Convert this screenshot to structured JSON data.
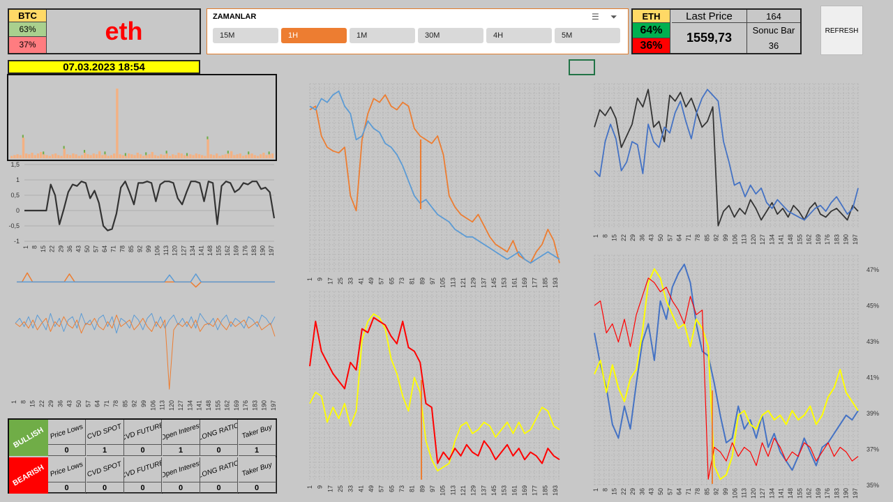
{
  "btc": {
    "label": "BTC",
    "bull_pct": "63%",
    "bear_pct": "37%"
  },
  "coin_name": "eth",
  "slicer": {
    "title": "ZAMANLAR",
    "buttons": [
      {
        "label": "15M",
        "selected": false
      },
      {
        "label": "1H",
        "selected": true
      },
      {
        "label": "1M",
        "selected": false
      },
      {
        "label": "30M",
        "selected": false
      },
      {
        "label": "4H",
        "selected": false
      },
      {
        "label": "5M",
        "selected": false
      }
    ],
    "icons": [
      "multi-select-icon",
      "clear-filter-icon"
    ]
  },
  "eth": {
    "label": "ETH",
    "bull_pct": "64%",
    "bear_pct": "36%",
    "last_price_label": "Last Price",
    "last_price": "1559,73",
    "bar_count": "164",
    "sonuc_bar_label": "Sonuc Bar",
    "sonuc_bar": "36"
  },
  "refresh_label": "REFRESH",
  "date": "07.03.2023 18:54",
  "signals": {
    "headers": [
      "Price Lows",
      "CVD SPOT",
      "CVD FUTURE",
      "Open Interest",
      "LONG RATIO",
      "Taker Buy"
    ],
    "bullish_label": "BULLISH",
    "bearish_label": "BEARISH",
    "bullish_values": [
      "0",
      "1",
      "0",
      "1",
      "0",
      "1"
    ],
    "bearish_values": [
      "0",
      "0",
      "0",
      "0",
      "0",
      "0"
    ]
  },
  "colors": {
    "orange": "#ed7d31",
    "blue": "#5b9bd5",
    "black": "#333333",
    "red": "#ff0000",
    "yellow": "#ffff00",
    "bull_green": "#00b050",
    "bear_red": "#ff0000"
  },
  "chart_data": [
    {
      "id": "volume",
      "type": "bar",
      "series": [
        {
          "values": [
            3,
            4,
            5,
            4,
            26,
            6,
            5,
            7,
            4,
            6,
            8,
            5,
            4,
            3,
            5,
            6,
            4,
            3,
            12,
            5,
            4,
            6,
            5,
            3,
            4,
            7,
            5,
            4,
            6,
            5,
            9,
            4,
            5,
            3,
            4,
            6,
            88,
            5,
            4,
            3,
            6,
            5,
            4,
            7,
            5,
            3,
            4,
            5,
            8,
            4,
            3,
            5,
            4,
            6,
            3,
            5,
            4,
            7,
            6,
            4,
            3,
            5,
            4,
            6,
            5,
            4,
            3,
            24,
            5,
            4,
            6,
            3,
            4,
            5,
            6,
            9,
            4,
            5,
            6,
            3,
            4,
            5,
            6,
            4,
            3,
            5,
            7,
            4,
            5,
            6
          ]
        }
      ]
    },
    {
      "id": "oscillator",
      "type": "line",
      "ylim": [
        -1,
        1.5
      ],
      "yticks": [
        "1,5",
        "1",
        "0,5",
        "0",
        "-0,5",
        "-1"
      ],
      "x_ticks": [
        "1",
        "8",
        "15",
        "22",
        "29",
        "36",
        "43",
        "50",
        "57",
        "64",
        "71",
        "78",
        "85",
        "92",
        "99",
        "106",
        "113",
        "120",
        "127",
        "134",
        "141",
        "148",
        "155",
        "162",
        "169",
        "176",
        "183",
        "190",
        "197"
      ],
      "series": [
        {
          "values": [
            0,
            0,
            0,
            0,
            0,
            0,
            0.85,
            0.5,
            -0.45,
            0.05,
            0.6,
            0.85,
            0.8,
            0.95,
            0.9,
            0.4,
            0.65,
            0.25,
            -0.5,
            -0.65,
            -0.6,
            -0.1,
            0.75,
            0.95,
            0.6,
            0.2,
            0.9,
            0.9,
            0.95,
            0.9,
            0.3,
            0.85,
            0.95,
            0.95,
            0.9,
            0.4,
            0.2,
            0.6,
            0.95,
            0.95,
            0.9,
            0.3,
            0.95,
            0.9,
            -0.45,
            0.8,
            0.95,
            0.9,
            0.6,
            0.7,
            0.9,
            0.85,
            0.95,
            0.95,
            0.7,
            0.75,
            0.6,
            -0.25
          ]
        }
      ]
    },
    {
      "id": "spikes",
      "type": "line",
      "series": [
        {
          "name": "orange",
          "values": [
            0,
            0,
            9,
            0,
            0,
            0,
            0,
            0,
            0,
            0,
            8,
            0,
            0,
            0,
            0,
            0,
            0,
            0,
            0,
            0,
            0,
            0,
            0,
            0,
            0,
            0,
            0,
            0,
            0,
            0,
            0,
            0,
            0,
            0,
            -5,
            0,
            0,
            0,
            0,
            0,
            0,
            0,
            0,
            0,
            0,
            0,
            0,
            0,
            0,
            0
          ]
        },
        {
          "name": "blue",
          "values": [
            0,
            0,
            0,
            0,
            0,
            0,
            0,
            0,
            0,
            0,
            0,
            0,
            0,
            0,
            0,
            0,
            0,
            0,
            0,
            0,
            0,
            0,
            0,
            0,
            0,
            0,
            0,
            0,
            0,
            7,
            0,
            0,
            0,
            0,
            8,
            0,
            0,
            0,
            0,
            0,
            0,
            0,
            0,
            0,
            0,
            0,
            0,
            0,
            0,
            0
          ]
        }
      ]
    },
    {
      "id": "cvd",
      "type": "line",
      "x_ticks": [
        "1",
        "8",
        "15",
        "22",
        "29",
        "36",
        "43",
        "50",
        "57",
        "64",
        "71",
        "78",
        "85",
        "92",
        "99",
        "106",
        "113",
        "120",
        "127",
        "134",
        "141",
        "148",
        "155",
        "162",
        "169",
        "176",
        "183",
        "190",
        "197"
      ],
      "series": [
        {
          "name": "blue",
          "values": [
            0,
            3,
            -2,
            4,
            -3,
            5,
            1,
            -4,
            6,
            -2,
            3,
            -5,
            2,
            4,
            -3,
            6,
            -1,
            2,
            -4,
            3,
            5,
            -2,
            4,
            -6,
            3,
            1,
            -3,
            5,
            2,
            -4,
            3,
            6,
            -2,
            4,
            -3,
            2,
            5,
            -1,
            3,
            -2,
            4,
            -3,
            6,
            2,
            -1,
            3,
            -4,
            2,
            5,
            -2,
            3,
            1,
            -3,
            4,
            2,
            -2,
            5,
            3,
            -1,
            4
          ]
        },
        {
          "name": "orange",
          "values": [
            0,
            -2,
            1,
            -3,
            2,
            -4,
            0,
            3,
            -5,
            1,
            -2,
            4,
            -1,
            -3,
            2,
            -6,
            0,
            -1,
            3,
            -2,
            -4,
            1,
            -3,
            5,
            -2,
            0,
            2,
            -4,
            -1,
            3,
            -2,
            -5,
            1,
            -3,
            2,
            -40,
            -4,
            0,
            -2,
            1,
            -3,
            2,
            -5,
            -1,
            0,
            -2,
            3,
            -1,
            -4,
            1,
            -2,
            0,
            2,
            -3,
            -1,
            1,
            -4,
            -2,
            0,
            -8
          ]
        }
      ]
    },
    {
      "id": "price-vs-blue",
      "type": "line",
      "x_ticks": [
        "1",
        "9",
        "17",
        "25",
        "33",
        "41",
        "49",
        "57",
        "65",
        "73",
        "81",
        "89",
        "97",
        "105",
        "113",
        "121",
        "129",
        "137",
        "145",
        "153",
        "161",
        "169",
        "177",
        "185",
        "193"
      ],
      "series": [
        {
          "name": "orange",
          "values": [
            86,
            88,
            72,
            66,
            64,
            63,
            66,
            40,
            32,
            70,
            84,
            92,
            90,
            94,
            88,
            86,
            90,
            88,
            76,
            72,
            70,
            68,
            72,
            62,
            40,
            34,
            30,
            28,
            26,
            30,
            24,
            18,
            14,
            12,
            10,
            16,
            8,
            6,
            4,
            10,
            14,
            22,
            16,
            4
          ]
        },
        {
          "name": "blue",
          "values": [
            88,
            86,
            92,
            90,
            94,
            96,
            88,
            84,
            70,
            72,
            80,
            76,
            74,
            68,
            66,
            62,
            56,
            48,
            40,
            36,
            38,
            34,
            30,
            28,
            26,
            22,
            20,
            18,
            18,
            16,
            14,
            12,
            10,
            8,
            6,
            8,
            10,
            6,
            4,
            6,
            8,
            10,
            8,
            6
          ]
        }
      ]
    },
    {
      "id": "black-vs-blue",
      "type": "line",
      "x_ticks": [
        "1",
        "8",
        "15",
        "22",
        "29",
        "36",
        "43",
        "50",
        "57",
        "64",
        "71",
        "78",
        "85",
        "92",
        "99",
        "106",
        "113",
        "120",
        "127",
        "134",
        "141",
        "148",
        "155",
        "162",
        "169",
        "176",
        "183",
        "190",
        "197"
      ],
      "series": [
        {
          "name": "black",
          "values": [
            70,
            82,
            78,
            84,
            76,
            56,
            64,
            72,
            90,
            84,
            96,
            70,
            74,
            60,
            92,
            88,
            94,
            84,
            90,
            80,
            70,
            74,
            84,
            2,
            12,
            16,
            8,
            14,
            10,
            20,
            14,
            6,
            12,
            18,
            10,
            14,
            8,
            16,
            12,
            6,
            14,
            18,
            10,
            8,
            12,
            14,
            10,
            6,
            16,
            12
          ]
        },
        {
          "name": "blue",
          "values": [
            40,
            36,
            60,
            72,
            62,
            40,
            46,
            60,
            58,
            38,
            72,
            60,
            56,
            70,
            66,
            80,
            88,
            74,
            62,
            80,
            90,
            96,
            92,
            88,
            60,
            46,
            30,
            32,
            22,
            30,
            24,
            28,
            18,
            14,
            20,
            16,
            12,
            10,
            8,
            6,
            10,
            14,
            16,
            12,
            18,
            22,
            16,
            10,
            14,
            28
          ]
        }
      ]
    },
    {
      "id": "red-vs-yellow",
      "type": "line",
      "x_ticks": [
        "1",
        "9",
        "17",
        "25",
        "33",
        "41",
        "49",
        "57",
        "65",
        "73",
        "81",
        "89",
        "97",
        "105",
        "113",
        "121",
        "129",
        "137",
        "145",
        "153",
        "161",
        "169",
        "177",
        "185",
        "193"
      ],
      "series": [
        {
          "name": "red",
          "values": [
            60,
            84,
            68,
            62,
            56,
            52,
            48,
            62,
            58,
            80,
            78,
            86,
            84,
            82,
            76,
            72,
            84,
            70,
            68,
            62,
            40,
            38,
            8,
            14,
            10,
            16,
            12,
            18,
            14,
            12,
            20,
            16,
            10,
            14,
            18,
            12,
            16,
            10,
            14,
            12,
            8,
            16,
            12,
            10
          ]
        },
        {
          "name": "yellow",
          "values": [
            40,
            46,
            44,
            30,
            38,
            32,
            40,
            28,
            36,
            74,
            84,
            88,
            86,
            80,
            64,
            56,
            44,
            36,
            54,
            46,
            20,
            10,
            4,
            6,
            8,
            20,
            28,
            30,
            24,
            26,
            30,
            28,
            22,
            26,
            30,
            24,
            30,
            24,
            26,
            32,
            38,
            36,
            28,
            26
          ]
        }
      ]
    },
    {
      "id": "pct-lines",
      "type": "line",
      "yticks": [
        "47%",
        "45%",
        "43%",
        "41%",
        "39%",
        "37%",
        "35%"
      ],
      "x_ticks": [
        "1",
        "8",
        "15",
        "22",
        "29",
        "36",
        "43",
        "50",
        "57",
        "64",
        "71",
        "78",
        "85",
        "92",
        "99",
        "106",
        "113",
        "120",
        "127",
        "134",
        "141",
        "148",
        "155",
        "162",
        "169",
        "176",
        "183",
        "190",
        "197"
      ],
      "series": [
        {
          "name": "red",
          "values": [
            78,
            80,
            66,
            70,
            62,
            72,
            60,
            74,
            82,
            90,
            88,
            84,
            86,
            80,
            76,
            70,
            82,
            74,
            76,
            2,
            16,
            14,
            10,
            18,
            12,
            16,
            14,
            8,
            18,
            12,
            20,
            16,
            10,
            14,
            12,
            18,
            16,
            10,
            14,
            18,
            12,
            16,
            14,
            10,
            12
          ]
        },
        {
          "name": "blue",
          "values": [
            66,
            52,
            42,
            26,
            20,
            34,
            24,
            44,
            62,
            70,
            54,
            80,
            72,
            86,
            92,
            96,
            88,
            70,
            58,
            56,
            44,
            30,
            18,
            20,
            34,
            24,
            28,
            20,
            30,
            16,
            22,
            14,
            10,
            6,
            12,
            20,
            14,
            8,
            16,
            18,
            22,
            26,
            30,
            28,
            32
          ]
        },
        {
          "name": "yellow",
          "values": [
            48,
            54,
            40,
            52,
            42,
            36,
            46,
            50,
            66,
            88,
            94,
            90,
            80,
            74,
            68,
            70,
            60,
            72,
            68,
            60,
            8,
            2,
            4,
            12,
            30,
            32,
            26,
            24,
            30,
            32,
            28,
            30,
            26,
            32,
            28,
            30,
            34,
            26,
            30,
            38,
            42,
            50,
            40,
            36,
            32
          ]
        }
      ]
    }
  ]
}
